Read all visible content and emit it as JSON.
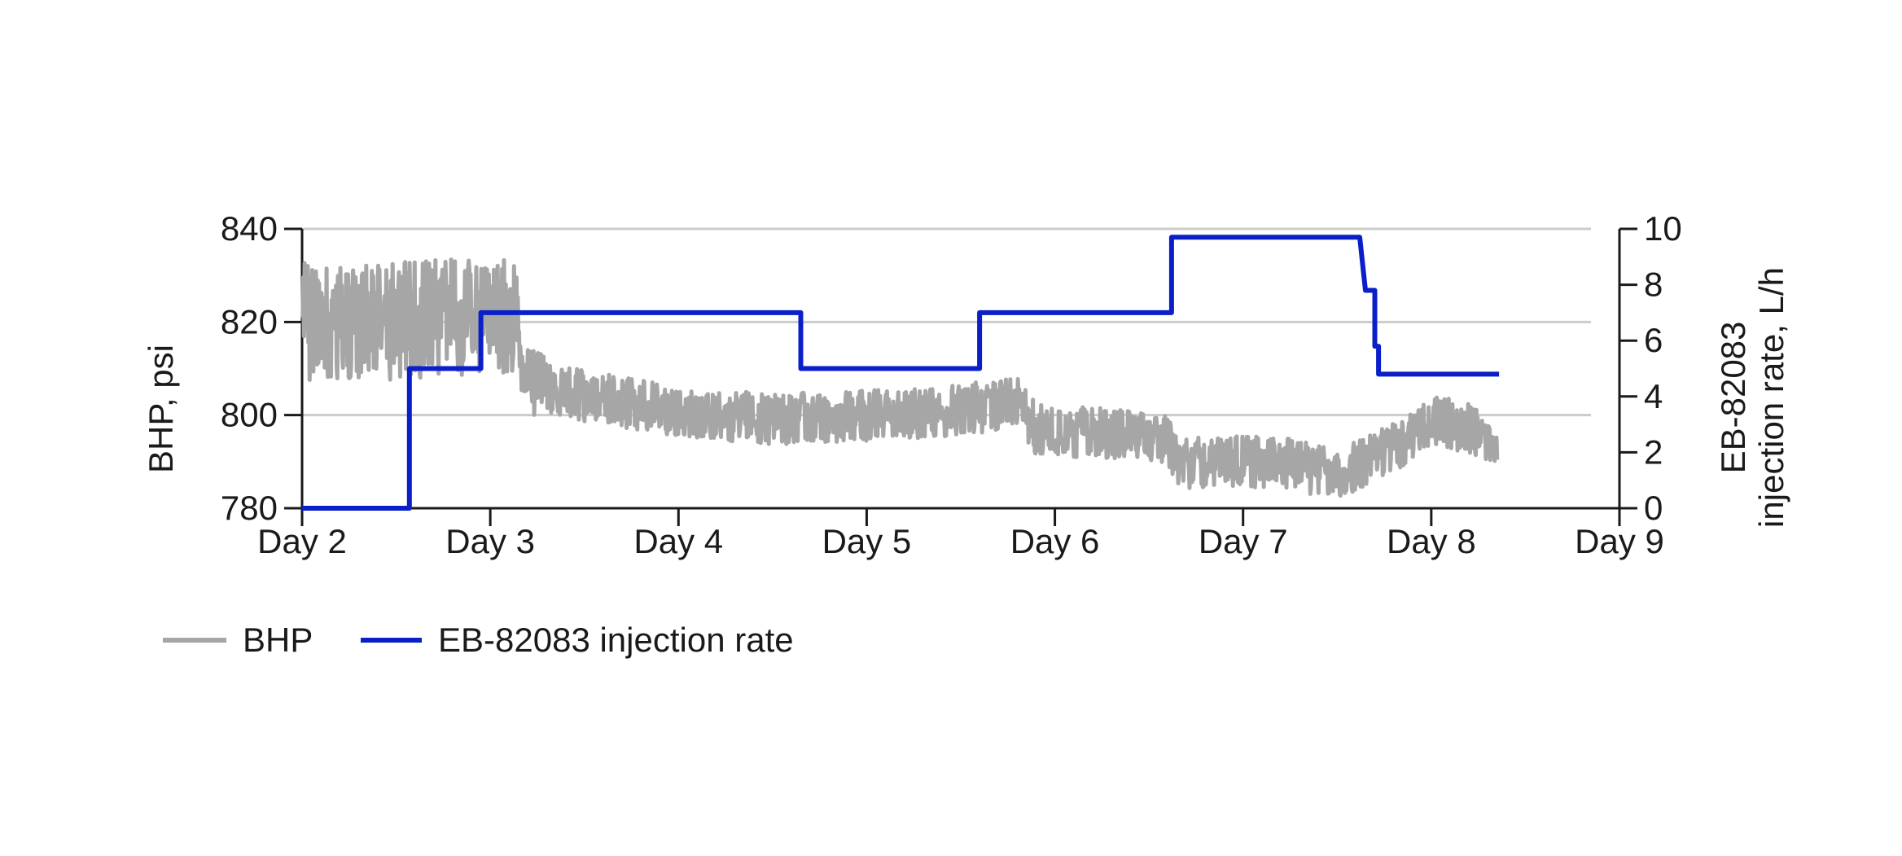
{
  "chart_data": {
    "type": "line",
    "title": "",
    "xlabel": "",
    "x_ticks": [
      "Day 2",
      "Day 3",
      "Day 4",
      "Day 5",
      "Day 6",
      "Day 7",
      "Day 8",
      "Day 9"
    ],
    "xlim": [
      2,
      9
    ],
    "y_left": {
      "label": "BHP, psi",
      "lim": [
        780,
        840
      ],
      "ticks": [
        780,
        800,
        820,
        840
      ]
    },
    "y_right": {
      "label_line1": "EB-82083",
      "label_line2": "injection rate, L/h",
      "lim": [
        0,
        10
      ],
      "ticks": [
        0,
        2,
        4,
        6,
        8,
        10
      ]
    },
    "grid": "horizontal",
    "legend_position": "bottom-left",
    "series": [
      {
        "name": "BHP",
        "axis": "left",
        "color": "#a6a6a6",
        "style": "noisy",
        "x": [
          2.0,
          2.5,
          3.0,
          3.15,
          3.2,
          3.5,
          4.0,
          4.5,
          5.0,
          5.5,
          5.8,
          5.9,
          6.3,
          6.6,
          6.65,
          6.8,
          7.2,
          7.5,
          7.6,
          7.8,
          8.0,
          8.2,
          8.35
        ],
        "values": [
          820,
          820,
          821,
          820,
          807,
          804,
          801,
          799,
          800,
          801,
          803,
          797,
          796,
          795,
          789,
          790,
          790,
          787,
          789,
          793,
          799,
          797,
          795
        ]
      },
      {
        "name": "EB-82083 injection rate",
        "axis": "right",
        "color": "#0a1fc8",
        "style": "step",
        "x": [
          2.0,
          2.57,
          2.57,
          2.95,
          2.95,
          4.65,
          4.65,
          5.6,
          5.6,
          6.62,
          6.62,
          7.62,
          7.65,
          7.65,
          7.68,
          7.7,
          7.7,
          7.72,
          7.72,
          8.36
        ],
        "values": [
          0,
          0,
          5,
          5,
          7,
          7,
          5,
          5,
          7,
          7,
          9.7,
          9.7,
          7.8,
          7.8,
          7.8,
          7.8,
          5.8,
          5.8,
          4.8,
          4.8
        ]
      }
    ]
  }
}
